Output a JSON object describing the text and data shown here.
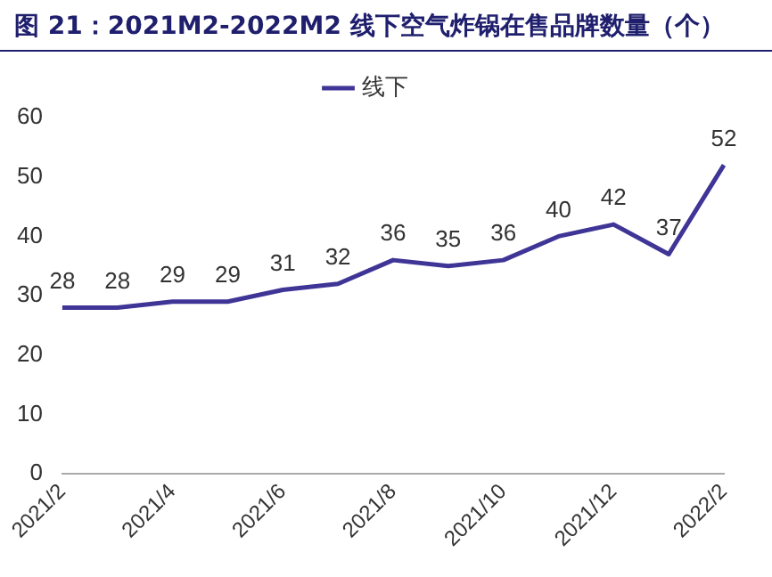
{
  "chart_data": {
    "type": "line",
    "title": "图 21：2021M2-2022M2 线下空气炸锅在售品牌数量（个）",
    "categories": [
      "2021/2",
      null,
      "2021/4",
      null,
      "2021/6",
      null,
      "2021/8",
      null,
      "2021/10",
      null,
      "2021/12",
      null,
      "2022/2"
    ],
    "series": [
      {
        "name": "线下",
        "color": "#3f3596",
        "values": [
          28,
          28,
          29,
          29,
          31,
          32,
          36,
          35,
          36,
          40,
          42,
          37,
          52
        ]
      }
    ],
    "ylim": [
      0,
      60
    ],
    "yticks": [
      0,
      10,
      20,
      30,
      40,
      50,
      60
    ],
    "grid": false,
    "legend": "top",
    "data_labels": true,
    "marker": "none",
    "line_style": "solid"
  }
}
